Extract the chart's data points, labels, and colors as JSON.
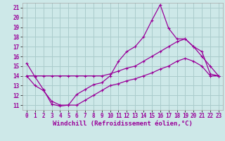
{
  "xlabel": "Windchill (Refroidissement éolien,°C)",
  "background_color": "#cde8e8",
  "grid_color": "#aacccc",
  "line_color": "#990099",
  "xlim": [
    -0.5,
    23.5
  ],
  "ylim": [
    10.5,
    21.5
  ],
  "xticks": [
    0,
    1,
    2,
    3,
    4,
    5,
    6,
    7,
    8,
    9,
    10,
    11,
    12,
    13,
    14,
    15,
    16,
    17,
    18,
    19,
    20,
    21,
    22,
    23
  ],
  "yticks": [
    11,
    12,
    13,
    14,
    15,
    16,
    17,
    18,
    19,
    20,
    21
  ],
  "hours": [
    0,
    1,
    2,
    3,
    4,
    5,
    6,
    7,
    8,
    9,
    10,
    11,
    12,
    13,
    14,
    15,
    16,
    17,
    18,
    19,
    20,
    21,
    22,
    23
  ],
  "line_top": [
    15.3,
    13.9,
    12.6,
    11.1,
    10.9,
    11.0,
    12.1,
    12.6,
    13.1,
    13.3,
    14.0,
    15.5,
    16.5,
    17.0,
    18.0,
    19.7,
    21.3,
    18.9,
    17.8,
    17.8,
    17.0,
    16.0,
    15.0,
    14.0
  ],
  "line_mid": [
    14.0,
    14.0,
    14.0,
    14.0,
    14.0,
    14.0,
    14.0,
    14.0,
    14.0,
    14.0,
    14.2,
    14.5,
    14.8,
    15.0,
    15.5,
    16.0,
    16.5,
    17.0,
    17.5,
    17.8,
    17.0,
    16.5,
    14.2,
    14.0
  ],
  "line_bot": [
    14.0,
    13.0,
    12.5,
    11.4,
    11.0,
    11.0,
    11.0,
    11.5,
    12.0,
    12.5,
    13.0,
    13.2,
    13.5,
    13.7,
    14.0,
    14.3,
    14.7,
    15.0,
    15.5,
    15.8,
    15.5,
    15.0,
    14.0,
    14.0
  ],
  "tick_fontsize": 5.5,
  "xlabel_fontsize": 6.5,
  "marker": "+"
}
